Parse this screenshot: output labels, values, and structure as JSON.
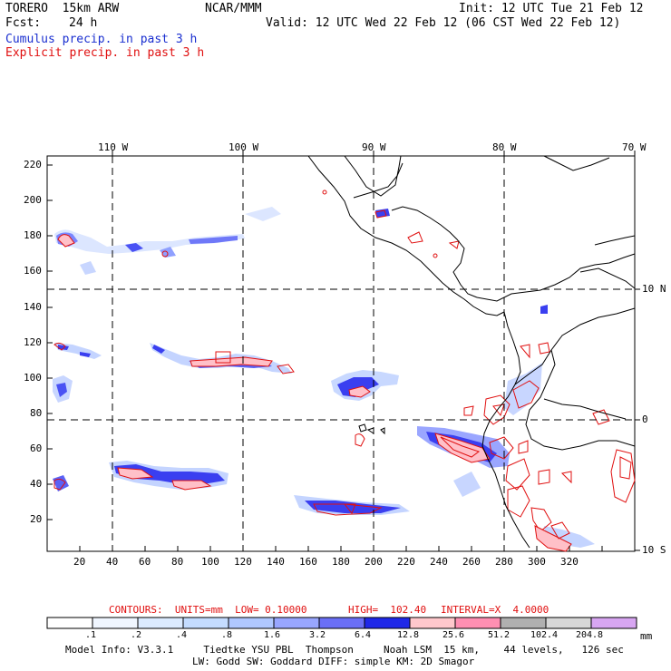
{
  "header": {
    "model": "TORERO  15km ARW",
    "org": "NCAR/MMM",
    "init": "Init: 12 UTC Tue 21 Feb 12",
    "fcst_label": "Fcst:",
    "fcst_value": "24 h",
    "valid": "Valid: 12 UTC Wed 22 Feb 12 (06 CST Wed 22 Feb 12)",
    "cumulus": "Cumulus precip. in past 3 h",
    "explicit": "Explicit precip. in past 3 h"
  },
  "map": {
    "top_lon_labels": [
      "110 W",
      "100 W",
      "90 W",
      "80 W",
      "70 W"
    ],
    "right_lat_labels": [
      "10 N",
      "0",
      "10 S"
    ],
    "y_ticks": [
      "220",
      "200",
      "180",
      "160",
      "140",
      "120",
      "100",
      "80",
      "60",
      "40",
      "20"
    ],
    "x_ticks": [
      "20",
      "40",
      "60",
      "80",
      "100",
      "120",
      "140",
      "160",
      "180",
      "200",
      "220",
      "240",
      "260",
      "280",
      "300",
      "320"
    ],
    "colors": {
      "land_outline": "#000000",
      "cumulus_light": "#d6e6ff",
      "cumulus_mid": "#8fa0ff",
      "cumulus_strong": "#3a3ff0",
      "cumulus_max": "#0000e0",
      "explicit_contour": "#e01010",
      "explicit_fill": "#ffc0c8"
    }
  },
  "contours": {
    "label": "CONTOURS:  UNITS=mm  LOW= 0.10000",
    "high": "HIGH=  102.40",
    "interval": "INTERVAL=X  4.0000"
  },
  "legend": {
    "values": [
      ".1",
      ".2",
      ".4",
      ".8",
      "1.6",
      "3.2",
      "6.4",
      "12.8",
      "25.6",
      "51.2",
      "102.4",
      "204.8"
    ],
    "unit": "mm",
    "colors": [
      "#ffffff",
      "#f0f6ff",
      "#dcebff",
      "#c4dcff",
      "#b0c8ff",
      "#98a6ff",
      "#6a6ff6",
      "#1f28e8",
      "#ffc8cc",
      "#ff8fb2",
      "#b0b0b0",
      "#d8d8d8",
      "#d8a6f2"
    ]
  },
  "footer": {
    "line1": "Model Info: V3.3.1     Tiedtke YSU PBL  Thompson     Noah LSM  15 km,    44 levels,   126 sec",
    "line2": "LW: Godd SW: Goddard DIFF: simple KM: 2D Smagor"
  }
}
